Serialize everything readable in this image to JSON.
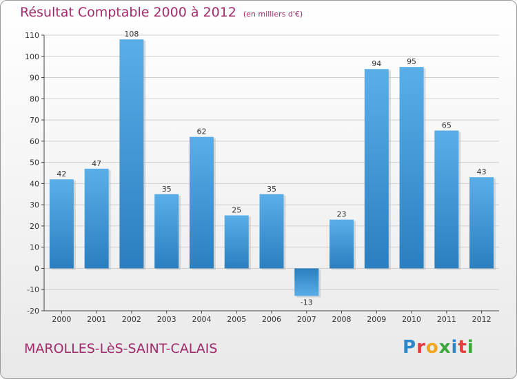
{
  "header": {
    "title": "Résultat Comptable 2000 à 2012",
    "subtitle": "(en milliers d'€)"
  },
  "footer": {
    "location": "MAROLLES-LèS-SAINT-CALAIS",
    "logo_letters": [
      "P",
      "r",
      "o",
      "x",
      "i",
      "t",
      "i"
    ],
    "logo_colors": [
      "#2b87c9",
      "#e23c3c",
      "#f2a51e",
      "#3aa83a",
      "#2b87c9",
      "#e23c3c",
      "#3aa83a"
    ]
  },
  "chart_data": {
    "type": "bar",
    "title": "Résultat Comptable 2000 à 2012",
    "subtitle": "(en milliers d'€)",
    "categories": [
      "2000",
      "2001",
      "2002",
      "2003",
      "2004",
      "2005",
      "2006",
      "2007",
      "2008",
      "2009",
      "2010",
      "2011",
      "2012"
    ],
    "values": [
      42,
      47,
      108,
      35,
      62,
      25,
      35,
      -13,
      23,
      94,
      95,
      65,
      43
    ],
    "ylim": [
      -20,
      110
    ],
    "yticks": [
      -20,
      -10,
      0,
      10,
      20,
      30,
      40,
      50,
      60,
      70,
      80,
      90,
      100,
      110
    ],
    "grid": true,
    "bar_color": "#3c96d8"
  }
}
